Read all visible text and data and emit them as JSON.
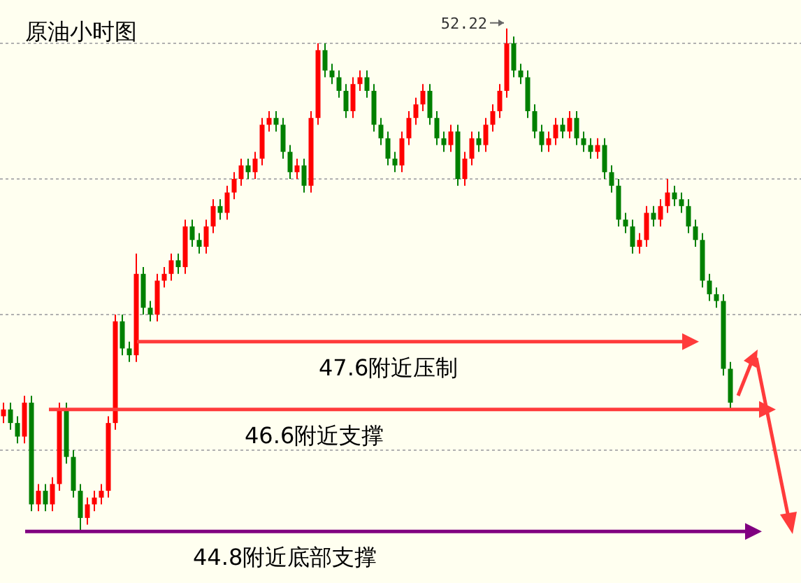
{
  "chart_data": {
    "type": "candlestick",
    "title": "原油小时图",
    "categories": [
      null,
      null,
      null,
      null,
      null,
      null,
      null,
      null,
      null,
      null,
      null,
      null,
      null,
      null,
      null,
      null,
      null,
      null,
      null,
      null,
      null,
      null,
      null,
      null,
      null,
      null,
      null,
      null,
      null,
      null,
      null,
      null,
      null,
      null,
      null,
      null,
      null,
      null,
      null,
      null,
      null,
      null,
      null,
      null,
      null,
      null,
      null,
      null,
      null,
      null,
      null,
      null,
      null,
      null,
      null,
      null,
      null,
      null,
      null,
      null,
      null,
      null,
      null,
      null,
      null,
      null,
      null,
      null,
      null,
      null,
      null,
      null,
      null,
      null,
      null,
      null,
      null,
      null,
      null,
      null,
      null,
      null,
      null,
      null,
      null,
      null,
      null,
      null,
      null,
      null,
      null,
      null,
      null,
      null,
      null,
      null,
      null,
      null,
      null,
      null,
      null,
      null,
      null,
      null,
      null
    ],
    "ohlc": [
      [
        46.5,
        46.7,
        46.4,
        46.6
      ],
      [
        46.6,
        46.7,
        46.3,
        46.4
      ],
      [
        46.4,
        46.5,
        46.1,
        46.2
      ],
      [
        46.2,
        46.8,
        46.1,
        46.7
      ],
      [
        46.7,
        46.8,
        45.1,
        45.2
      ],
      [
        45.2,
        45.5,
        45.1,
        45.4
      ],
      [
        45.4,
        45.5,
        45.1,
        45.2
      ],
      [
        45.2,
        45.6,
        45.1,
        45.5
      ],
      [
        45.5,
        46.7,
        45.4,
        46.6
      ],
      [
        46.6,
        46.7,
        45.8,
        45.9
      ],
      [
        45.9,
        46.0,
        45.3,
        45.4
      ],
      [
        45.4,
        45.5,
        44.8,
        45.0
      ],
      [
        45.0,
        45.3,
        44.9,
        45.2
      ],
      [
        45.2,
        45.4,
        45.1,
        45.3
      ],
      [
        45.3,
        45.5,
        45.2,
        45.4
      ],
      [
        45.4,
        46.5,
        45.3,
        46.4
      ],
      [
        46.4,
        48.0,
        46.3,
        47.9
      ],
      [
        47.9,
        48.0,
        47.4,
        47.5
      ],
      [
        47.5,
        47.6,
        47.3,
        47.4
      ],
      [
        47.4,
        48.9,
        47.3,
        48.6
      ],
      [
        48.6,
        48.7,
        48.0,
        48.1
      ],
      [
        48.1,
        48.2,
        47.9,
        48.0
      ],
      [
        48.0,
        48.6,
        47.9,
        48.5
      ],
      [
        48.5,
        48.7,
        48.4,
        48.6
      ],
      [
        48.6,
        48.9,
        48.5,
        48.8
      ],
      [
        48.8,
        48.9,
        48.6,
        48.7
      ],
      [
        48.7,
        49.4,
        48.6,
        49.3
      ],
      [
        49.3,
        49.4,
        49.0,
        49.1
      ],
      [
        49.1,
        49.2,
        48.9,
        49.0
      ],
      [
        49.0,
        49.4,
        48.9,
        49.3
      ],
      [
        49.3,
        49.7,
        49.2,
        49.6
      ],
      [
        49.6,
        49.7,
        49.4,
        49.5
      ],
      [
        49.5,
        49.9,
        49.4,
        49.8
      ],
      [
        49.8,
        50.1,
        49.7,
        50.0
      ],
      [
        50.0,
        50.3,
        49.9,
        50.2
      ],
      [
        50.2,
        50.3,
        50.0,
        50.1
      ],
      [
        50.1,
        50.4,
        50.0,
        50.3
      ],
      [
        50.3,
        50.9,
        50.2,
        50.8
      ],
      [
        50.8,
        51.0,
        50.7,
        50.9
      ],
      [
        50.9,
        51.0,
        50.7,
        50.8
      ],
      [
        50.8,
        50.9,
        50.3,
        50.4
      ],
      [
        50.4,
        50.5,
        50.0,
        50.1
      ],
      [
        50.1,
        50.3,
        50.0,
        50.2
      ],
      [
        50.2,
        50.3,
        49.8,
        49.9
      ],
      [
        49.9,
        51.0,
        49.8,
        50.9
      ],
      [
        50.9,
        52.0,
        50.8,
        51.9
      ],
      [
        51.9,
        52.0,
        51.5,
        51.6
      ],
      [
        51.6,
        51.7,
        51.4,
        51.5
      ],
      [
        51.5,
        51.6,
        51.2,
        51.3
      ],
      [
        51.3,
        51.4,
        50.9,
        51.0
      ],
      [
        51.0,
        51.5,
        50.9,
        51.4
      ],
      [
        51.4,
        51.6,
        51.3,
        51.5
      ],
      [
        51.5,
        51.6,
        51.2,
        51.3
      ],
      [
        51.3,
        51.4,
        50.7,
        50.8
      ],
      [
        50.8,
        50.9,
        50.5,
        50.6
      ],
      [
        50.6,
        50.7,
        50.2,
        50.3
      ],
      [
        50.3,
        50.4,
        50.1,
        50.2
      ],
      [
        50.2,
        50.7,
        50.1,
        50.6
      ],
      [
        50.6,
        51.0,
        50.5,
        50.9
      ],
      [
        50.9,
        51.2,
        50.8,
        51.1
      ],
      [
        51.1,
        51.4,
        51.0,
        51.3
      ],
      [
        51.3,
        51.4,
        50.8,
        50.9
      ],
      [
        50.9,
        51.0,
        50.5,
        50.6
      ],
      [
        50.6,
        50.7,
        50.4,
        50.5
      ],
      [
        50.5,
        50.8,
        50.4,
        50.7
      ],
      [
        50.7,
        50.8,
        49.9,
        50.0
      ],
      [
        50.0,
        50.4,
        49.9,
        50.3
      ],
      [
        50.3,
        50.7,
        50.2,
        50.6
      ],
      [
        50.6,
        50.7,
        50.4,
        50.5
      ],
      [
        50.5,
        50.9,
        50.4,
        50.8
      ],
      [
        50.8,
        51.1,
        50.7,
        51.0
      ],
      [
        51.0,
        51.4,
        50.9,
        51.3
      ],
      [
        51.3,
        52.22,
        51.2,
        52.0
      ],
      [
        52.0,
        52.1,
        51.5,
        51.6
      ],
      [
        51.6,
        51.7,
        51.4,
        51.5
      ],
      [
        51.5,
        51.6,
        50.9,
        51.0
      ],
      [
        51.0,
        51.1,
        50.6,
        50.7
      ],
      [
        50.7,
        50.8,
        50.4,
        50.5
      ],
      [
        50.5,
        50.7,
        50.4,
        50.6
      ],
      [
        50.6,
        50.9,
        50.5,
        50.8
      ],
      [
        50.8,
        50.9,
        50.6,
        50.7
      ],
      [
        50.7,
        51.0,
        50.6,
        50.9
      ],
      [
        50.9,
        51.0,
        50.5,
        50.6
      ],
      [
        50.6,
        50.7,
        50.4,
        50.5
      ],
      [
        50.5,
        50.6,
        50.3,
        50.4
      ],
      [
        50.4,
        50.6,
        50.3,
        50.5
      ],
      [
        50.5,
        50.6,
        50.0,
        50.1
      ],
      [
        50.1,
        50.2,
        49.8,
        49.9
      ],
      [
        49.9,
        50.0,
        49.3,
        49.4
      ],
      [
        49.4,
        49.5,
        49.2,
        49.3
      ],
      [
        49.3,
        49.4,
        48.9,
        49.0
      ],
      [
        49.0,
        49.2,
        48.9,
        49.1
      ],
      [
        49.1,
        49.6,
        49.0,
        49.5
      ],
      [
        49.5,
        49.6,
        49.3,
        49.4
      ],
      [
        49.4,
        49.7,
        49.3,
        49.6
      ],
      [
        49.6,
        50.0,
        49.5,
        49.8
      ],
      [
        49.8,
        49.9,
        49.6,
        49.7
      ],
      [
        49.7,
        49.8,
        49.5,
        49.6
      ],
      [
        49.6,
        49.7,
        49.2,
        49.3
      ],
      [
        49.3,
        49.4,
        49.0,
        49.1
      ],
      [
        49.1,
        49.2,
        48.4,
        48.5
      ],
      [
        48.5,
        48.6,
        48.2,
        48.3
      ],
      [
        48.3,
        48.4,
        48.1,
        48.2
      ],
      [
        48.2,
        48.3,
        47.1,
        47.2
      ],
      [
        47.2,
        47.3,
        46.6,
        46.7
      ]
    ],
    "colors": [
      "#ff0000",
      "#008000",
      "#008000",
      "#ff0000",
      "#008000",
      "#ff0000",
      "#008000",
      "#ff0000",
      "#ff0000",
      "#008000",
      "#008000",
      "#008000",
      "#ff0000",
      "#ff0000",
      "#ff0000",
      "#ff0000",
      "#ff0000",
      "#008000",
      "#008000",
      "#ff0000",
      "#008000",
      "#008000",
      "#ff0000",
      "#ff0000",
      "#ff0000",
      "#008000",
      "#ff0000",
      "#008000",
      "#008000",
      "#ff0000",
      "#ff0000",
      "#008000",
      "#ff0000",
      "#ff0000",
      "#ff0000",
      "#008000",
      "#ff0000",
      "#ff0000",
      "#ff0000",
      "#008000",
      "#008000",
      "#008000",
      "#ff0000",
      "#008000",
      "#ff0000",
      "#ff0000",
      "#008000",
      "#008000",
      "#008000",
      "#008000",
      "#ff0000",
      "#ff0000",
      "#008000",
      "#008000",
      "#008000",
      "#008000",
      "#008000",
      "#ff0000",
      "#ff0000",
      "#ff0000",
      "#ff0000",
      "#008000",
      "#008000",
      "#008000",
      "#ff0000",
      "#008000",
      "#ff0000",
      "#ff0000",
      "#008000",
      "#ff0000",
      "#ff0000",
      "#ff0000",
      "#ff0000",
      "#008000",
      "#008000",
      "#008000",
      "#008000",
      "#008000",
      "#ff0000",
      "#ff0000",
      "#008000",
      "#ff0000",
      "#008000",
      "#008000",
      "#008000",
      "#ff0000",
      "#008000",
      "#008000",
      "#008000",
      "#008000",
      "#008000",
      "#ff0000",
      "#ff0000",
      "#008000",
      "#ff0000",
      "#ff0000",
      "#008000",
      "#008000",
      "#008000",
      "#008000",
      "#008000",
      "#008000",
      "#008000",
      "#008000",
      "#008000"
    ],
    "ylim": [
      44.04,
      52.64
    ],
    "yticks": [
      {
        "value": 46,
        "label": null
      },
      {
        "value": 48,
        "label": null
      },
      {
        "value": 50,
        "label": null
      },
      {
        "value": 52,
        "label": null
      }
    ],
    "grid": "y",
    "annotations": [
      "52.22"
    ],
    "ref_lines": [
      {
        "axis": "y",
        "value": 47.6,
        "label": "47.6附近压制",
        "color": "#ff3b3b"
      },
      {
        "axis": "y",
        "value": 46.6,
        "label": "46.6附近支撑",
        "color": "#ff3b3b"
      },
      {
        "axis": "y",
        "value": 44.8,
        "label": "44.8附近底部支撑",
        "color": "#800080"
      }
    ]
  }
}
